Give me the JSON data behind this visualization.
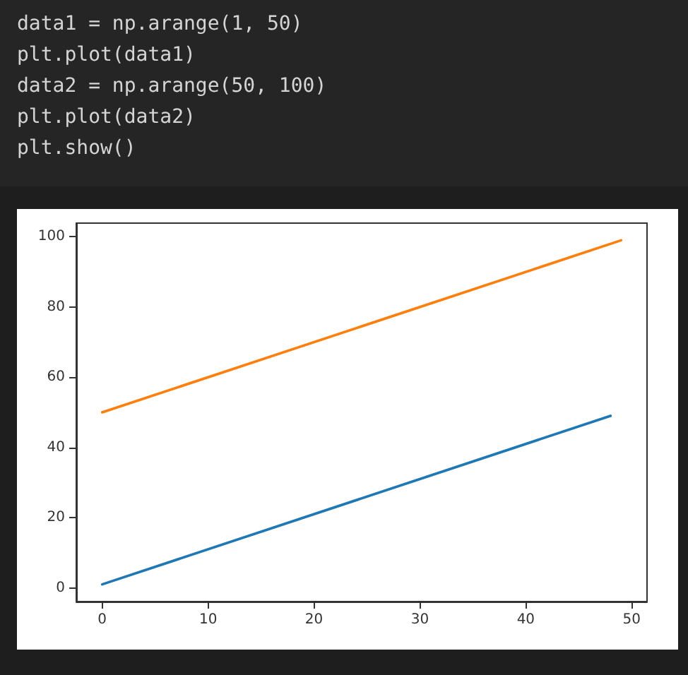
{
  "chart_data": {
    "type": "line",
    "annotations": [
      "data1 = np.arange(1, 50)",
      "plt.plot(data1)",
      "data2 = np.arange(50, 100)",
      "plt.plot(data2)",
      "plt.show()"
    ],
    "series": [
      {
        "color": "#1f77b4",
        "x": [
          0,
          48
        ],
        "values": [
          1,
          49
        ]
      },
      {
        "color": "#ff7f0e",
        "x": [
          0,
          49
        ],
        "values": [
          50,
          99
        ]
      }
    ],
    "xlim": [
      -2.45,
      51.45
    ],
    "xticks": [
      0,
      10,
      20,
      30,
      40,
      50
    ],
    "ylim": [
      -3.9,
      103.9
    ],
    "yticks": [
      0,
      20,
      40,
      60,
      80,
      100
    ],
    "marker": "none",
    "line_style": "solid"
  }
}
